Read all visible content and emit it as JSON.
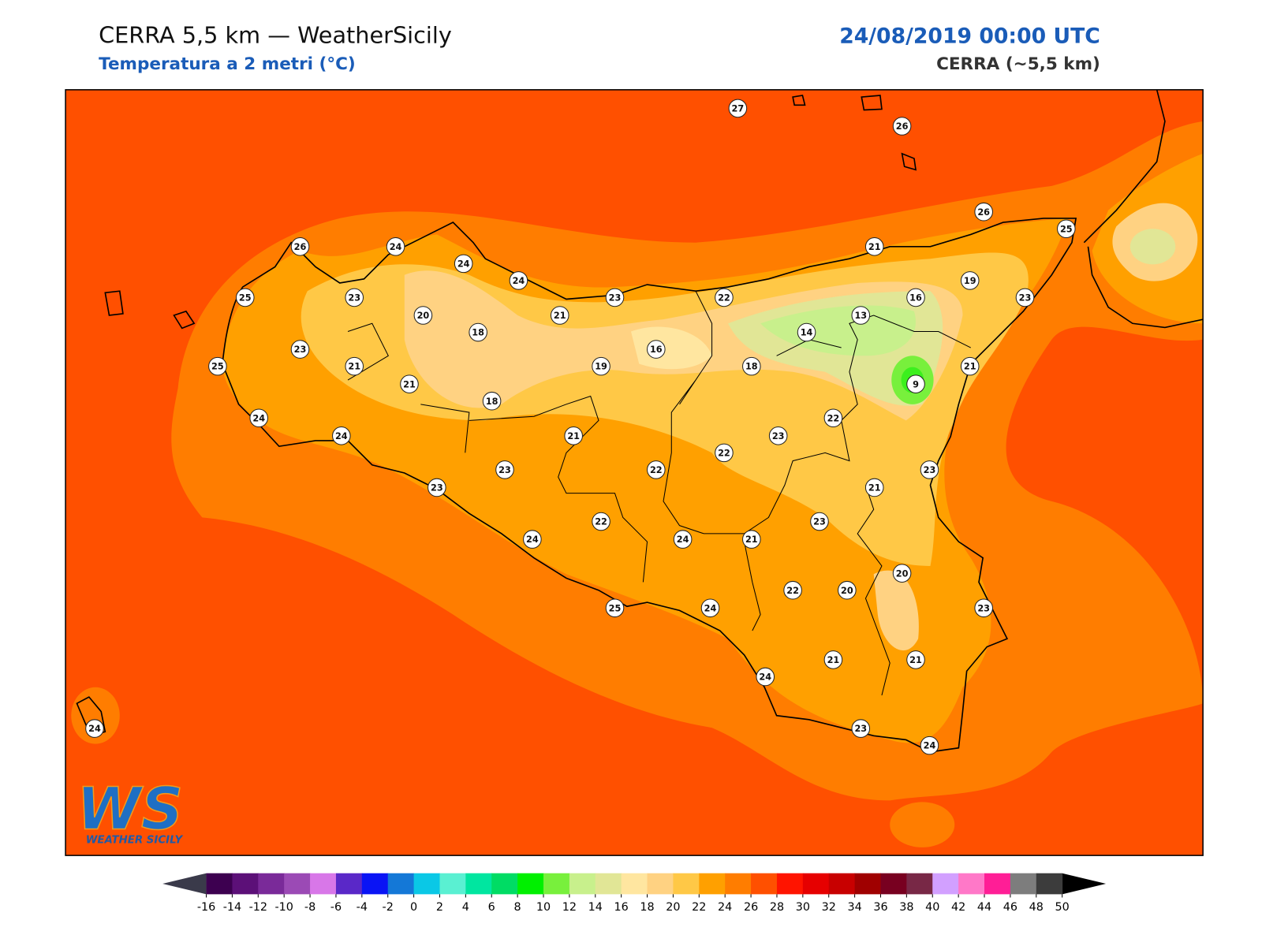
{
  "header": {
    "title": "CERRA 5,5 km — WeatherSicily",
    "subtitle": "Temperatura a 2 metri (°C)",
    "datetime": "24/08/2019 00:00 UTC",
    "source": "CERRA (~5,5 km)"
  },
  "stations": [
    27,
    26,
    26,
    25,
    21,
    19,
    16,
    23,
    13,
    14,
    9,
    21,
    18,
    22,
    23,
    21,
    24,
    24,
    24,
    26,
    25,
    23,
    20,
    18,
    16,
    19,
    23,
    21,
    25,
    21,
    18,
    24,
    24,
    21,
    22,
    23,
    22,
    22,
    23,
    23,
    23,
    21,
    23,
    22,
    24,
    24,
    21,
    20,
    20,
    22,
    23,
    25,
    24,
    24,
    21,
    21,
    23,
    24,
    24
  ],
  "colorbar": {
    "ticks": [
      -16,
      -14,
      -12,
      -10,
      -8,
      -6,
      -4,
      -2,
      0,
      2,
      4,
      6,
      8,
      10,
      12,
      14,
      16,
      18,
      20,
      22,
      24,
      26,
      28,
      30,
      32,
      34,
      36,
      38,
      40,
      42,
      44,
      46,
      48,
      50
    ],
    "colors": [
      "#3d0050",
      "#5c1078",
      "#7a2a99",
      "#9b4ab5",
      "#d877e8",
      "#5a28c8",
      "#0a14f5",
      "#1478d7",
      "#0ac8e6",
      "#5af0d2",
      "#00e6a0",
      "#00dc64",
      "#00f000",
      "#78f03c",
      "#c8f08c",
      "#e1e696",
      "#ffe6a0",
      "#ffd282",
      "#ffc846",
      "#ffa000",
      "#ff7d00",
      "#ff5000",
      "#ff1400",
      "#e60000",
      "#c80000",
      "#a00000",
      "#780020",
      "#782846",
      "#d2a0ff",
      "#ff78c8",
      "#ff1e96",
      "#7d7d7d",
      "#3c3c3c"
    ],
    "under_color": "#3a3a4a",
    "over_color": "#000000"
  },
  "logo": {
    "mark": "WS",
    "text": "WEATHER SICILY"
  }
}
